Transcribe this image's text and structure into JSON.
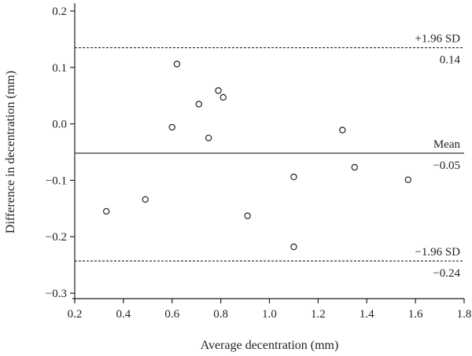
{
  "chart_data": {
    "type": "scatter",
    "title": "",
    "xlabel": "Average decentration (mm)",
    "ylabel": "Difference in decentration (mm)",
    "xlim": [
      0.2,
      1.8
    ],
    "ylim": [
      -0.3,
      0.2
    ],
    "xticks": [
      "0.2",
      "0.4",
      "0.6",
      "0.8",
      "1.0",
      "1.2",
      "1.4",
      "1.6",
      "1.8"
    ],
    "yticks": [
      "0.2",
      "0.1",
      "0.0",
      "−0.1",
      "−0.2",
      "−0.3"
    ],
    "grid": false,
    "points": [
      {
        "x": 0.33,
        "y": -0.155
      },
      {
        "x": 0.49,
        "y": -0.134
      },
      {
        "x": 0.6,
        "y": -0.006
      },
      {
        "x": 0.62,
        "y": 0.106
      },
      {
        "x": 0.71,
        "y": 0.035
      },
      {
        "x": 0.75,
        "y": -0.025
      },
      {
        "x": 0.79,
        "y": 0.059
      },
      {
        "x": 0.81,
        "y": 0.047
      },
      {
        "x": 0.91,
        "y": -0.163
      },
      {
        "x": 1.1,
        "y": -0.218
      },
      {
        "x": 1.1,
        "y": -0.094
      },
      {
        "x": 1.3,
        "y": -0.011
      },
      {
        "x": 1.35,
        "y": -0.077
      },
      {
        "x": 1.57,
        "y": -0.099
      }
    ],
    "reference_lines": [
      {
        "label": "+1.96 SD",
        "value_label": "0.14",
        "y": 0.135,
        "style": "dashed"
      },
      {
        "label": "Mean",
        "value_label": "−0.05",
        "y": -0.052,
        "style": "solid"
      },
      {
        "label": "−1.96 SD",
        "value_label": "−0.24",
        "y": -0.243,
        "style": "dashed"
      }
    ]
  }
}
